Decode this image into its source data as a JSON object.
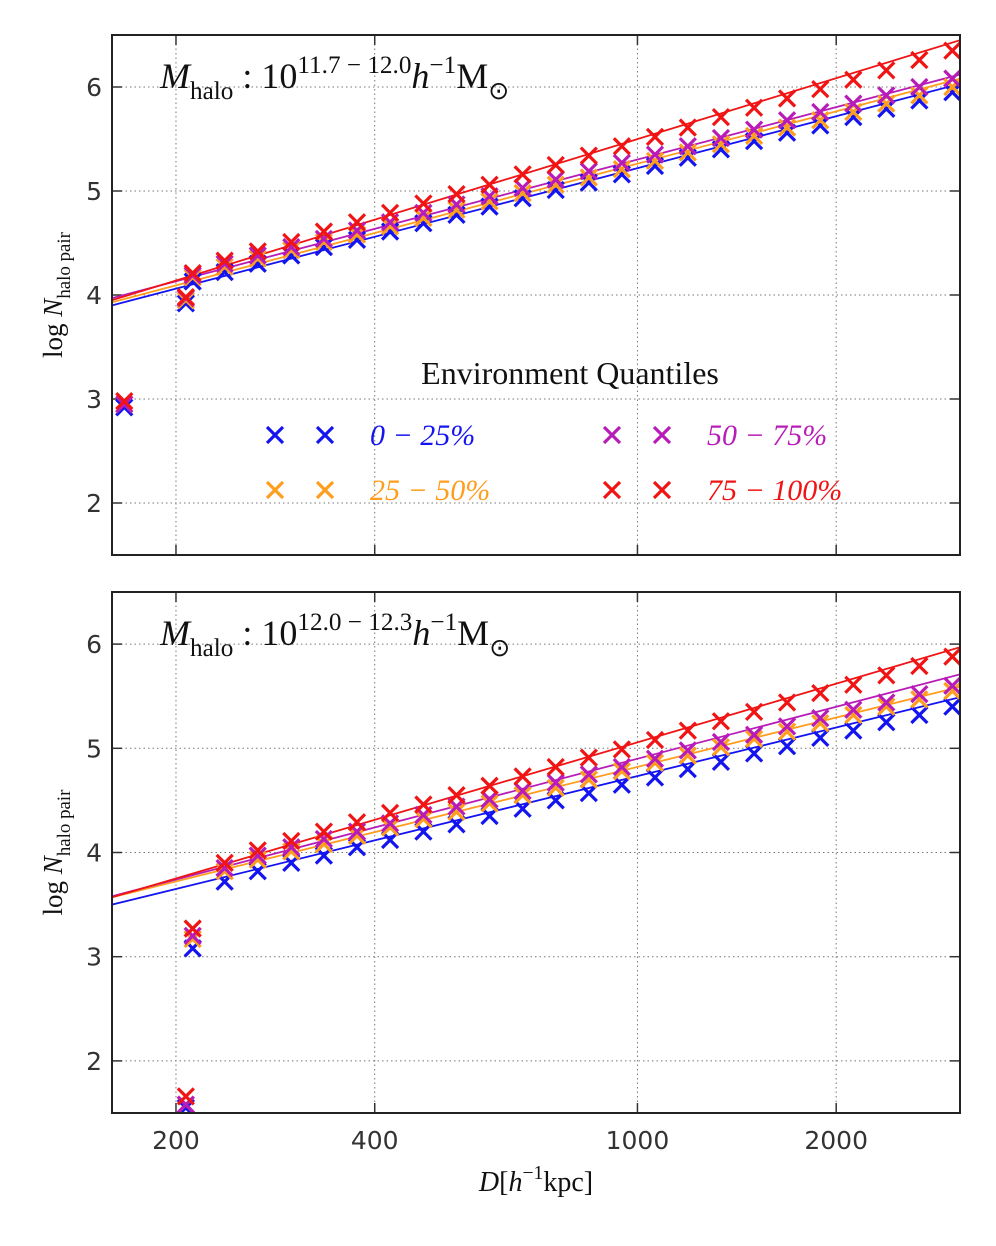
{
  "chart_data": [
    {
      "type": "scatter",
      "xscale": "log",
      "grid": true,
      "show_xtick_labels": false,
      "annotation": [
        {
          "text": "M",
          "role": "i"
        },
        {
          "text": "halo",
          "role": "sub"
        },
        {
          "text": " : 10",
          "role": "r"
        },
        {
          "text": "11.7 − 12.0",
          "role": "sup"
        },
        {
          "text": "h",
          "role": "i"
        },
        {
          "text": "−1",
          "role": "sup"
        },
        {
          "text": "M",
          "role": "r"
        },
        {
          "text": "⊙",
          "role": "sub"
        }
      ],
      "ylabel": [
        {
          "text": "log ",
          "role": "r"
        },
        {
          "text": "N",
          "role": "i"
        },
        {
          "text": "halo pair",
          "role": "sub"
        }
      ],
      "legend": "right",
      "legend_title": "Environment Quantiles",
      "xlim": [
        160,
        3080
      ],
      "ylim": [
        1.5,
        6.5
      ],
      "xticks": [
        200,
        400,
        1000,
        2000
      ],
      "yticks": [
        2,
        3,
        4,
        5,
        6
      ],
      "x": [
        167,
        207,
        212,
        237,
        266,
        299,
        335,
        376,
        422,
        474,
        532,
        597,
        670,
        752,
        844,
        947,
        1063,
        1192,
        1338,
        1502,
        1685,
        1892,
        2123,
        2382,
        2673,
        2999
      ],
      "series": [
        {
          "name": "0 − 25%",
          "color": "#1414f0",
          "values": [
            2.92,
            3.92,
            4.13,
            4.22,
            4.3,
            4.38,
            4.46,
            4.53,
            4.61,
            4.69,
            4.77,
            4.85,
            4.93,
            5.01,
            5.08,
            5.16,
            5.24,
            5.32,
            5.4,
            5.48,
            5.56,
            5.63,
            5.71,
            5.79,
            5.87,
            5.95
          ],
          "fit": {
            "x": [
              160,
              3080
            ],
            "values": [
              3.9,
              6.03
            ]
          }
        },
        {
          "name": "25 − 50%",
          "color": "#ff9d1f",
          "values": [
            2.95,
            3.95,
            4.17,
            4.27,
            4.35,
            4.43,
            4.51,
            4.58,
            4.66,
            4.74,
            4.82,
            4.9,
            4.98,
            5.06,
            5.13,
            5.21,
            5.29,
            5.37,
            5.45,
            5.53,
            5.61,
            5.68,
            5.76,
            5.84,
            5.92,
            6.0
          ],
          "fit": {
            "x": [
              160,
              3080
            ],
            "values": [
              3.93,
              6.08
            ]
          }
        },
        {
          "name": "50 − 75%",
          "color": "#b81cb8",
          "values": [
            2.95,
            3.97,
            4.19,
            4.3,
            4.38,
            4.46,
            4.54,
            4.62,
            4.7,
            4.79,
            4.87,
            4.95,
            5.03,
            5.11,
            5.19,
            5.27,
            5.35,
            5.43,
            5.51,
            5.59,
            5.68,
            5.76,
            5.84,
            5.92,
            6.0,
            6.08
          ],
          "fit": {
            "x": [
              160,
              3080
            ],
            "values": [
              3.97,
              6.12
            ]
          }
        },
        {
          "name": "75 − 100%",
          "color": "#f01414",
          "values": [
            2.98,
            3.98,
            4.21,
            4.33,
            4.42,
            4.51,
            4.61,
            4.7,
            4.79,
            4.88,
            4.97,
            5.06,
            5.16,
            5.25,
            5.34,
            5.43,
            5.52,
            5.61,
            5.71,
            5.8,
            5.89,
            5.98,
            6.07,
            6.16,
            6.26,
            6.35
          ],
          "fit": {
            "x": [
              160,
              3080
            ],
            "values": [
              3.95,
              6.45
            ]
          }
        }
      ]
    },
    {
      "type": "scatter",
      "xscale": "log",
      "grid": true,
      "show_xtick_labels": true,
      "annotation": [
        {
          "text": "M",
          "role": "i"
        },
        {
          "text": "halo",
          "role": "sub"
        },
        {
          "text": " : 10",
          "role": "r"
        },
        {
          "text": "12.0 − 12.3",
          "role": "sup"
        },
        {
          "text": "h",
          "role": "i"
        },
        {
          "text": "−1",
          "role": "sup"
        },
        {
          "text": "M",
          "role": "r"
        },
        {
          "text": "⊙",
          "role": "sub"
        }
      ],
      "ylabel": [
        {
          "text": "log ",
          "role": "r"
        },
        {
          "text": "N",
          "role": "i"
        },
        {
          "text": "halo pair",
          "role": "sub"
        }
      ],
      "xlabel": [
        {
          "text": "D",
          "role": "i"
        },
        {
          "text": "[",
          "role": "r"
        },
        {
          "text": "h",
          "role": "i"
        },
        {
          "text": "−1",
          "role": "sup"
        },
        {
          "text": "kpc]",
          "role": "r"
        }
      ],
      "xlim": [
        160,
        3080
      ],
      "ylim": [
        1.5,
        6.5
      ],
      "xticks": [
        200,
        400,
        1000,
        2000
      ],
      "yticks": [
        2,
        3,
        4,
        5,
        6
      ],
      "x": [
        207,
        212,
        237,
        266,
        299,
        335,
        376,
        422,
        474,
        532,
        597,
        670,
        752,
        844,
        947,
        1063,
        1192,
        1338,
        1502,
        1685,
        1892,
        2123,
        2382,
        2673,
        2999
      ],
      "series": [
        {
          "color": "#1414f0",
          "values": [
            1.55,
            3.08,
            3.72,
            3.82,
            3.9,
            3.97,
            4.05,
            4.12,
            4.2,
            4.27,
            4.35,
            4.42,
            4.5,
            4.57,
            4.65,
            4.72,
            4.8,
            4.87,
            4.95,
            5.02,
            5.1,
            5.17,
            5.25,
            5.32,
            5.4
          ],
          "fit": {
            "x": [
              160,
              3080
            ],
            "values": [
              3.5,
              5.49
            ]
          }
        },
        {
          "color": "#ff9d1f",
          "values": [
            1.58,
            3.17,
            3.82,
            3.93,
            4.01,
            4.08,
            4.16,
            4.24,
            4.32,
            4.39,
            4.47,
            4.55,
            4.62,
            4.7,
            4.78,
            4.86,
            4.93,
            5.01,
            5.09,
            5.16,
            5.24,
            5.32,
            5.4,
            5.47,
            5.55
          ],
          "fit": {
            "x": [
              160,
              3080
            ],
            "values": [
              3.57,
              5.59
            ]
          }
        },
        {
          "color": "#b81cb8",
          "values": [
            1.58,
            3.2,
            3.85,
            3.97,
            4.05,
            4.13,
            4.2,
            4.28,
            4.36,
            4.44,
            4.51,
            4.59,
            4.67,
            4.75,
            4.82,
            4.9,
            4.98,
            5.06,
            5.13,
            5.21,
            5.29,
            5.37,
            5.44,
            5.52,
            5.6
          ],
          "fit": {
            "x": [
              160,
              3080
            ],
            "values": [
              3.58,
              5.71
            ]
          }
        },
        {
          "color": "#f01414",
          "values": [
            1.66,
            3.27,
            3.9,
            4.02,
            4.11,
            4.2,
            4.29,
            4.38,
            4.46,
            4.55,
            4.64,
            4.73,
            4.82,
            4.91,
            4.99,
            5.08,
            5.17,
            5.26,
            5.35,
            5.44,
            5.53,
            5.61,
            5.7,
            5.79,
            5.88
          ],
          "fit": {
            "x": [
              160,
              3080
            ],
            "values": [
              3.57,
              5.97
            ]
          }
        }
      ]
    }
  ]
}
